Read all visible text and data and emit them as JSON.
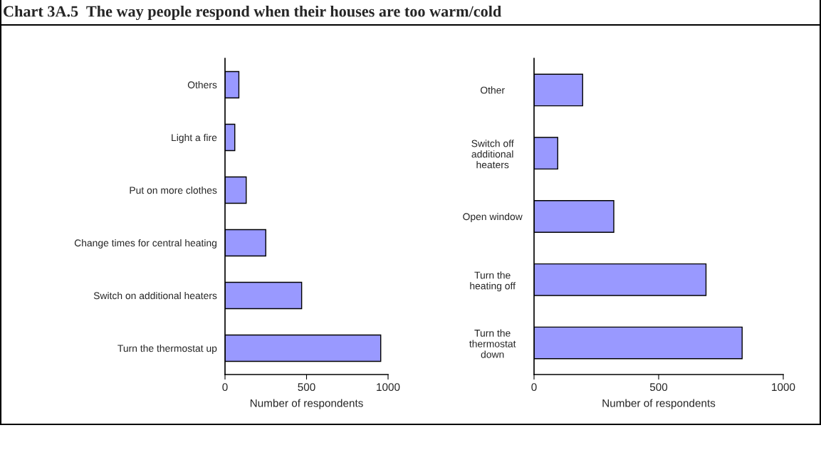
{
  "chart_data": [
    {
      "type": "bar",
      "orientation": "horizontal",
      "title": "Chart 3A.5  The way people respond when their houses are too warm/cold",
      "xlabel": "Number of respondents",
      "categories": [
        "Others",
        "Light a fire",
        "Put on more clothes",
        "Change times for central heating",
        "Switch on additional heaters",
        "Turn the thermostat up"
      ],
      "values": [
        85,
        60,
        130,
        250,
        470,
        955
      ],
      "color": "#9999ff",
      "xlim": [
        0,
        1000
      ],
      "xticks": [
        0,
        500,
        1000
      ],
      "grid": false,
      "legend": false
    },
    {
      "type": "bar",
      "orientation": "horizontal",
      "xlabel": "Number of respondents",
      "categories": [
        "Other",
        "Switch off\nadditional\nheaters",
        "Open window",
        "Turn the\nheating off",
        "Turn the\nthermostat\ndown"
      ],
      "values": [
        195,
        95,
        320,
        690,
        835
      ],
      "color": "#9999ff",
      "xlim": [
        0,
        1000
      ],
      "xticks": [
        0,
        500,
        1000
      ],
      "grid": false,
      "legend": false
    }
  ]
}
